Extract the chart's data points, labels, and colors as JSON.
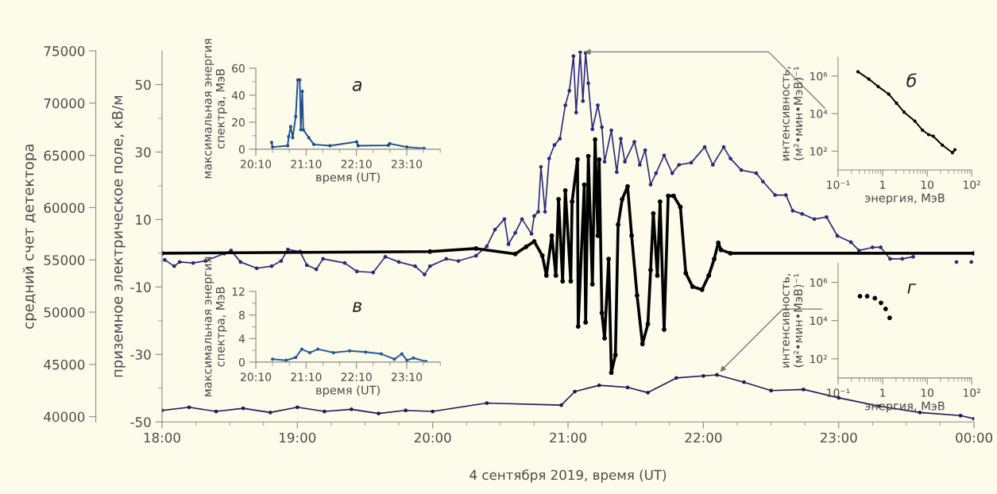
{
  "chart_data": [
    {
      "type": "line",
      "xlabel": "4 сентября 2019, время (UT)",
      "ylabel": "приземное электрическое поле, кВ/м",
      "y2label": "средний счет детектора",
      "xlim": [
        18,
        24
      ],
      "xticks": [
        {
          "value": 18,
          "label": "18:00"
        },
        {
          "value": 18.25,
          "label": null
        },
        {
          "value": 18.5,
          "label": null
        },
        {
          "value": 18.75,
          "label": null
        },
        {
          "value": 19,
          "label": "19:00"
        },
        {
          "value": 19.25,
          "label": null
        },
        {
          "value": 19.5,
          "label": null
        },
        {
          "value": 19.75,
          "label": null
        },
        {
          "value": 20,
          "label": "20:00"
        },
        {
          "value": 20.25,
          "label": null
        },
        {
          "value": 20.5,
          "label": null
        },
        {
          "value": 20.75,
          "label": null
        },
        {
          "value": 21,
          "label": "21:00"
        },
        {
          "value": 21.25,
          "label": null
        },
        {
          "value": 21.5,
          "label": null
        },
        {
          "value": 21.75,
          "label": null
        },
        {
          "value": 22,
          "label": "22:00"
        },
        {
          "value": 22.25,
          "label": null
        },
        {
          "value": 22.5,
          "label": null
        },
        {
          "value": 22.75,
          "label": null
        },
        {
          "value": 23,
          "label": "23:00"
        },
        {
          "value": 23.25,
          "label": null
        },
        {
          "value": 23.5,
          "label": null
        },
        {
          "value": 23.75,
          "label": null
        },
        {
          "value": 24,
          "label": "00:00"
        }
      ],
      "ylim": [
        -50,
        60
      ],
      "yticks": [
        -50,
        {
          "value": -40,
          "label": null
        },
        -30,
        {
          "value": -20,
          "label": null
        },
        -10,
        {
          "value": 0,
          "label": null
        },
        10,
        {
          "value": 20,
          "label": null
        },
        30,
        {
          "value": 40,
          "label": null
        },
        50
      ],
      "y2lim": [
        39500,
        75000
      ],
      "y2ticks": [
        40000,
        45000,
        50000,
        55000,
        60000,
        65000,
        70000,
        75000
      ],
      "grid": false,
      "marker": "circle",
      "line_style": "solid",
      "series": [
        {
          "color": "#2a2c7a",
          "axis": "y2",
          "x": [
            18.02,
            18.09,
            18.13,
            18.23,
            18.32,
            18.46,
            18.51,
            18.58,
            18.7,
            18.81,
            18.88,
            18.93,
            19.02,
            19.07,
            19.14,
            19.19,
            19.35,
            19.44,
            19.56,
            19.65,
            19.75,
            19.87,
            19.94,
            19.98,
            20.1,
            20.19,
            20.32,
            20.4,
            20.46,
            20.53,
            20.56,
            20.61,
            20.66,
            20.73,
            20.75,
            20.78,
            20.8,
            20.83,
            20.86,
            20.9,
            20.94,
            20.98,
            21.01,
            21.04,
            21.06,
            21.09,
            21.11,
            21.13,
            21.15,
            21.18,
            21.22,
            21.25,
            21.27,
            21.32,
            21.36,
            21.39,
            21.42,
            21.49,
            21.53,
            21.57,
            21.61,
            21.65,
            21.71,
            21.77,
            21.82,
            21.91,
            22.01,
            22.07,
            22.15,
            22.2,
            22.28,
            22.39,
            22.44,
            22.53,
            22.61,
            22.66,
            22.73,
            22.82,
            22.91,
            22.99,
            23.09,
            23.15,
            23.25,
            23.31,
            23.38,
            23.47,
            23.55,
            23.6,
            23.87,
            23.9,
            23.98
          ],
          "values": [
            55000,
            54400,
            54800,
            54700,
            54900,
            55600,
            55900,
            54800,
            54200,
            54400,
            54900,
            56000,
            55800,
            54500,
            54100,
            55100,
            54700,
            53900,
            53800,
            55300,
            54800,
            54400,
            53600,
            54400,
            55100,
            54900,
            55400,
            56300,
            57900,
            58900,
            56500,
            57600,
            58900,
            57500,
            59200,
            59600,
            63900,
            59600,
            64700,
            66000,
            66600,
            69800,
            71200,
            74500,
            69100,
            74900,
            70200,
            74800,
            71900,
            67500,
            69800,
            67700,
            64400,
            67400,
            63400,
            66600,
            64400,
            66300,
            64100,
            65500,
            62200,
            63300,
            65000,
            63300,
            64100,
            64300,
            65800,
            64100,
            65800,
            64700,
            63600,
            63300,
            62500,
            61200,
            61200,
            59700,
            59400,
            58900,
            59100,
            57300,
            56700,
            55900,
            56200,
            56200,
            55100,
            55100,
            55300,
            null,
            54800,
            null,
            54800
          ]
        },
        {
          "color": "#1c1f5c",
          "axis": "y2",
          "x": [
            18.0,
            18.2,
            18.4,
            18.6,
            18.8,
            19.0,
            19.2,
            19.4,
            19.6,
            19.8,
            20.0,
            20.4,
            20.95,
            21.05,
            21.23,
            21.44,
            21.59,
            21.8,
            22.0,
            22.1,
            22.3,
            22.5,
            22.74,
            23.0,
            23.3,
            23.6,
            23.9,
            24.0
          ],
          "values": [
            40600,
            40900,
            40500,
            40800,
            40400,
            40900,
            40500,
            40700,
            40300,
            40600,
            40500,
            41300,
            41100,
            42400,
            43000,
            42800,
            42300,
            43700,
            43900,
            44000,
            43300,
            42500,
            42600,
            41800,
            41000,
            40400,
            40100,
            39800
          ]
        },
        {
          "color": "#000000",
          "x": [
            18.0,
            19.98,
            20.32,
            20.61,
            20.69,
            20.75,
            20.81,
            20.84,
            20.88,
            20.91,
            20.93,
            20.96,
            20.98,
            21.02,
            21.03,
            21.07,
            21.075,
            21.12,
            21.13,
            21.15,
            21.18,
            21.2,
            21.22,
            21.23,
            21.25,
            21.27,
            21.3,
            21.32,
            21.35,
            21.37,
            21.4,
            21.44,
            21.47,
            21.51,
            21.55,
            21.59,
            21.61,
            21.63,
            21.66,
            21.68,
            21.71,
            21.74,
            21.78,
            21.83,
            21.87,
            21.92,
            21.99,
            22.04,
            22.08,
            22.11,
            22.13,
            22.2,
            24.0
          ],
          "values": [
            0,
            0.5,
            1.4,
            -0.2,
            1.9,
            3.5,
            -0.7,
            -6.6,
            5.2,
            -6.6,
            16,
            -8.3,
            18.6,
            -8.3,
            15.3,
            27.8,
            -21.7,
            20.3,
            -20.5,
            28.8,
            -9.2,
            33.7,
            5.2,
            27.8,
            -17.7,
            -25.2,
            -1.7,
            -35.4,
            -30.2,
            8.5,
            16,
            19.8,
            5.2,
            -12.5,
            -26.9,
            -21,
            -5,
            11.8,
            -6.6,
            15.3,
            -22.6,
            17,
            17,
            13.7,
            -5.9,
            -9.9,
            -10.8,
            -6.6,
            -1.7,
            3.1,
            1,
            0,
            0
          ]
        }
      ]
    },
    {
      "type": "line",
      "xlabel": "время (UT)",
      "ylabel": "максимальная энергия\nспектра, МэВ",
      "annotations": [
        "а"
      ],
      "xlim": [
        20.1667,
        23.8333
      ],
      "xticks": [
        {
          "value": 20.1667,
          "label": "20:10"
        },
        {
          "value": 20.5,
          "label": null
        },
        {
          "value": 20.8333,
          "label": null
        },
        {
          "value": 21.1667,
          "label": "21:10"
        },
        {
          "value": 21.5,
          "label": null
        },
        {
          "value": 21.8333,
          "label": null
        },
        {
          "value": 22.1667,
          "label": "22:10"
        },
        {
          "value": 22.5,
          "label": null
        },
        {
          "value": 22.8333,
          "label": null
        },
        {
          "value": 23.1667,
          "label": "23:10"
        },
        {
          "value": 23.5,
          "label": null
        },
        {
          "value": 23.8333,
          "label": null
        }
      ],
      "ylim": [
        0,
        60
      ],
      "yticks": [
        0,
        {
          "value": 10,
          "label": null
        },
        20,
        {
          "value": 30,
          "label": null
        },
        40,
        {
          "value": 50,
          "label": null
        },
        60
      ],
      "grid": false,
      "marker": "circle",
      "series": [
        {
          "color": "#1f4f8f",
          "x": [
            20.48,
            20.5,
            20.8,
            20.82,
            20.86,
            20.9,
            20.96,
            21.0,
            21.04,
            21.06,
            21.09,
            21.11,
            21.22,
            21.32,
            21.64,
            22.17,
            22.2,
            22.8,
            22.83,
            23.17,
            23.51
          ],
          "values": [
            5,
            1.6,
            2.6,
            9.4,
            16.7,
            8.5,
            24.2,
            51.3,
            51.3,
            14.4,
            42.9,
            14.4,
            8.5,
            3.5,
            2.6,
            5.5,
            2.6,
            2.9,
            4.1,
            1.6,
            0.6
          ]
        }
      ]
    },
    {
      "type": "line",
      "xlabel": "энергия, МэВ",
      "ylabel": "интенсивность,\n(м²•мин•МэВ)⁻¹",
      "annotations": [
        "б"
      ],
      "log": "xy",
      "xlim": [
        0.1,
        100
      ],
      "xticks": [
        {
          "value": 0.1,
          "label": "10⁻¹"
        },
        1,
        10,
        {
          "value": 100,
          "label": "10²"
        }
      ],
      "ylim": [
        10,
        10000000
      ],
      "yticks": [
        {
          "value": 100,
          "label": "10²"
        },
        {
          "value": 10000,
          "label": "10⁴"
        },
        {
          "value": 1000000,
          "label": "10⁶"
        }
      ],
      "grid": false,
      "marker": "circle",
      "series": [
        {
          "color": "#000000",
          "x": [
            0.28,
            0.49,
            0.79,
            1.37,
            2.05,
            3.04,
            5.3,
            7.9,
            10.8,
            13.7,
            22,
            37,
            42
          ],
          "values": [
            1700000,
            690000,
            280000,
            110000,
            36000,
            12000,
            4000,
            1300,
            760,
            630,
            210,
            83,
            120
          ]
        }
      ]
    },
    {
      "type": "line",
      "xlabel": "время (UT)",
      "ylabel": "максимальная энергия\nспектра, МэВ",
      "annotations": [
        "в"
      ],
      "xlim": [
        20.1667,
        23.8333
      ],
      "xticks": [
        {
          "value": 20.1667,
          "label": "20:10"
        },
        {
          "value": 20.5,
          "label": null
        },
        {
          "value": 20.8333,
          "label": null
        },
        {
          "value": 21.1667,
          "label": "21:10"
        },
        {
          "value": 21.5,
          "label": null
        },
        {
          "value": 21.8333,
          "label": null
        },
        {
          "value": 22.1667,
          "label": "22:10"
        },
        {
          "value": 22.5,
          "label": null
        },
        {
          "value": 22.8333,
          "label": null
        },
        {
          "value": 23.1667,
          "label": "23:10"
        },
        {
          "value": 23.5,
          "label": null
        },
        {
          "value": 23.8333,
          "label": null
        }
      ],
      "ylim": [
        0,
        12
      ],
      "yticks": [
        0,
        {
          "value": 2,
          "label": null
        },
        4,
        {
          "value": 6,
          "label": null
        },
        8,
        {
          "value": 10,
          "label": null
        },
        12
      ],
      "grid": false,
      "marker": "circle",
      "series": [
        {
          "color": "#1f5d99",
          "x": [
            20.5,
            20.77,
            20.96,
            21.08,
            21.24,
            21.4,
            21.71,
            22.03,
            22.35,
            22.66,
            22.92,
            23.07,
            23.17,
            23.3,
            23.55
          ],
          "values": [
            0.5,
            0.3,
            0.8,
            2.2,
            1.6,
            2.2,
            1.6,
            1.9,
            1.7,
            1.4,
            0.5,
            1.4,
            0.3,
            0.7,
            0.1
          ]
        }
      ]
    },
    {
      "type": "scatter",
      "xlabel": "энергия, МэВ",
      "ylabel": "интенсивность,\n(м²•мин•МэВ)⁻¹",
      "annotations": [
        "г"
      ],
      "log": "xy",
      "xlim": [
        0.1,
        100
      ],
      "xticks": [
        {
          "value": 0.1,
          "label": "10⁻¹"
        },
        1,
        10,
        {
          "value": 100,
          "label": "10²"
        }
      ],
      "ylim": [
        10,
        10000000
      ],
      "yticks": [
        {
          "value": 100,
          "label": "10²"
        },
        {
          "value": 10000,
          "label": "10⁴"
        },
        {
          "value": 1000000,
          "label": "10⁶"
        }
      ],
      "grid": false,
      "marker": "circle",
      "series": [
        {
          "color": "#000000",
          "x": [
            0.31,
            0.45,
            0.67,
            0.92,
            1.17,
            1.44
          ],
          "values": [
            190000,
            190000,
            150000,
            85000,
            41000,
            14000
          ]
        }
      ]
    }
  ]
}
